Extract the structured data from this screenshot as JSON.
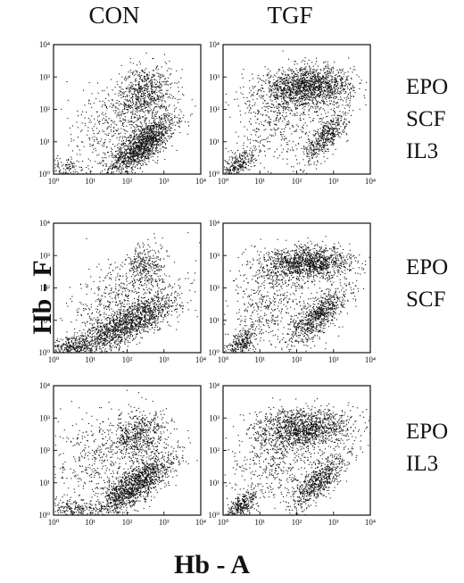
{
  "columns": [
    "CON",
    "TGF"
  ],
  "rows": [
    {
      "lines": [
        "EPO",
        "SCF",
        "IL3"
      ]
    },
    {
      "lines": [
        "EPO",
        "SCF"
      ]
    },
    {
      "lines": [
        "EPO",
        "IL3"
      ]
    }
  ],
  "axis": {
    "ylabel": "Hb - F",
    "xlabel": "Hb - A"
  },
  "chart_data": {
    "type": "scatter",
    "x_scale": "log",
    "y_scale": "log",
    "xlim": [
      1,
      10000
    ],
    "ylim": [
      1,
      10000
    ],
    "x_tick_labels": [
      "10⁰",
      "10¹",
      "10²",
      "10³",
      "10⁴"
    ],
    "y_tick_labels": [
      "10⁰",
      "10¹",
      "10²",
      "10³",
      "10⁴"
    ],
    "panels": [
      {
        "column": "CON",
        "row": "EPO SCF IL3",
        "clusters": [
          {
            "cx": 250,
            "cy": 8,
            "n": 1500,
            "sx": 0.45,
            "sy": 0.45,
            "corr": 0.75
          },
          {
            "cx": 300,
            "cy": 300,
            "n": 700,
            "sx": 0.35,
            "sy": 0.45,
            "corr": 0.2
          },
          {
            "cx": 2,
            "cy": 1.5,
            "n": 150,
            "sx": 0.3,
            "sy": 0.2,
            "corr": 0.0
          },
          {
            "cx": 40,
            "cy": 40,
            "n": 400,
            "sx": 0.8,
            "sy": 0.7,
            "corr": 0.3
          }
        ]
      },
      {
        "column": "TGF",
        "row": "EPO SCF IL3",
        "clusters": [
          {
            "cx": 200,
            "cy": 500,
            "n": 1600,
            "sx": 0.6,
            "sy": 0.3,
            "corr": 0.1
          },
          {
            "cx": 600,
            "cy": 15,
            "n": 500,
            "sx": 0.3,
            "sy": 0.4,
            "corr": 0.75
          },
          {
            "cx": 2.5,
            "cy": 2,
            "n": 300,
            "sx": 0.25,
            "sy": 0.25,
            "corr": 0.6
          },
          {
            "cx": 30,
            "cy": 60,
            "n": 500,
            "sx": 0.7,
            "sy": 0.7,
            "corr": 0.2
          }
        ]
      },
      {
        "column": "CON",
        "row": "EPO SCF",
        "clusters": [
          {
            "cx": 100,
            "cy": 8,
            "n": 1600,
            "sx": 0.7,
            "sy": 0.5,
            "corr": 0.8
          },
          {
            "cx": 300,
            "cy": 500,
            "n": 300,
            "sx": 0.3,
            "sy": 0.35,
            "corr": 0.2
          },
          {
            "cx": 3,
            "cy": 1.5,
            "n": 300,
            "sx": 0.3,
            "sy": 0.18,
            "corr": 0.3
          },
          {
            "cx": 50,
            "cy": 50,
            "n": 400,
            "sx": 0.7,
            "sy": 0.6,
            "corr": 0.4
          }
        ]
      },
      {
        "column": "TGF",
        "row": "EPO SCF",
        "clusters": [
          {
            "cx": 200,
            "cy": 600,
            "n": 1300,
            "sx": 0.6,
            "sy": 0.25,
            "corr": 0.1
          },
          {
            "cx": 400,
            "cy": 15,
            "n": 800,
            "sx": 0.4,
            "sy": 0.45,
            "corr": 0.75
          },
          {
            "cx": 3,
            "cy": 2,
            "n": 300,
            "sx": 0.22,
            "sy": 0.25,
            "corr": 0.6
          },
          {
            "cx": 20,
            "cy": 40,
            "n": 500,
            "sx": 0.6,
            "sy": 0.7,
            "corr": 0.3
          }
        ]
      },
      {
        "column": "CON",
        "row": "EPO IL3",
        "clusters": [
          {
            "cx": 150,
            "cy": 8,
            "n": 1500,
            "sx": 0.55,
            "sy": 0.5,
            "corr": 0.8
          },
          {
            "cx": 200,
            "cy": 300,
            "n": 600,
            "sx": 0.4,
            "sy": 0.4,
            "corr": 0.2
          },
          {
            "cx": 3,
            "cy": 1.5,
            "n": 200,
            "sx": 0.3,
            "sy": 0.18,
            "corr": 0.2
          },
          {
            "cx": 20,
            "cy": 60,
            "n": 400,
            "sx": 0.7,
            "sy": 0.7,
            "corr": 0.2
          }
        ]
      },
      {
        "column": "TGF",
        "row": "EPO IL3",
        "clusters": [
          {
            "cx": 150,
            "cy": 500,
            "n": 1300,
            "sx": 0.65,
            "sy": 0.3,
            "corr": 0.1
          },
          {
            "cx": 400,
            "cy": 12,
            "n": 700,
            "sx": 0.4,
            "sy": 0.45,
            "corr": 0.8
          },
          {
            "cx": 3,
            "cy": 2,
            "n": 350,
            "sx": 0.22,
            "sy": 0.25,
            "corr": 0.6
          },
          {
            "cx": 25,
            "cy": 50,
            "n": 500,
            "sx": 0.6,
            "sy": 0.7,
            "corr": 0.3
          }
        ]
      }
    ]
  }
}
